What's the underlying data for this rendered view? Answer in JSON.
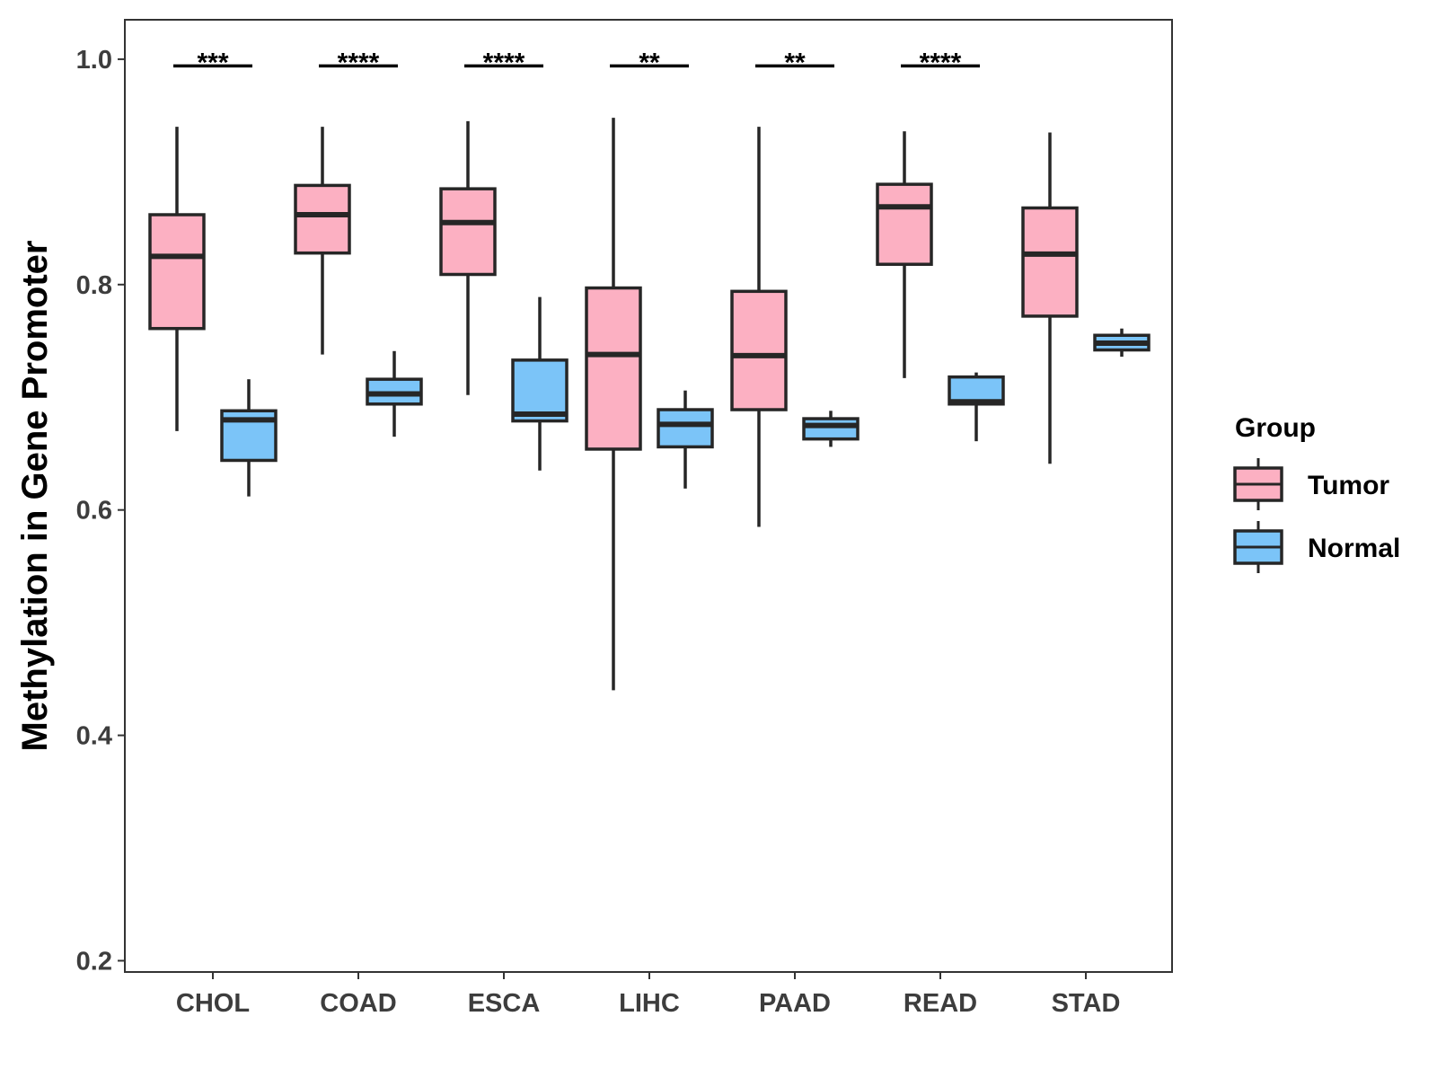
{
  "chart_data": {
    "type": "boxplot",
    "title": "",
    "xlabel": "",
    "ylabel": "Methylation in Gene Promoter",
    "ylim": [
      0.19,
      1.035
    ],
    "yticks": [
      {
        "value": 0.2,
        "label": "0.2"
      },
      {
        "value": 0.4,
        "label": "0.4"
      },
      {
        "value": 0.6,
        "label": "0.6"
      },
      {
        "value": 0.8,
        "label": "0.8"
      },
      {
        "value": 1.0,
        "label": "1.0"
      }
    ],
    "categories": [
      "CHOL",
      "COAD",
      "ESCA",
      "LIHC",
      "PAAD",
      "READ",
      "STAD"
    ],
    "legend": {
      "title": "Group",
      "placement": "right",
      "entries": [
        {
          "name": "Tumor",
          "color": "#FCB0C2"
        },
        {
          "name": "Normal",
          "color": "#7BC4F8"
        }
      ]
    },
    "series": [
      {
        "name": "Tumor",
        "color": "#FCB0C2",
        "boxes": [
          {
            "min": 0.67,
            "q1": 0.761,
            "median": 0.825,
            "q3": 0.862,
            "max": 0.94
          },
          {
            "min": 0.738,
            "q1": 0.828,
            "median": 0.862,
            "q3": 0.888,
            "max": 0.94
          },
          {
            "min": 0.702,
            "q1": 0.809,
            "median": 0.855,
            "q3": 0.885,
            "max": 0.945
          },
          {
            "min": 0.44,
            "q1": 0.654,
            "median": 0.738,
            "q3": 0.797,
            "max": 0.948
          },
          {
            "min": 0.585,
            "q1": 0.689,
            "median": 0.737,
            "q3": 0.794,
            "max": 0.94
          },
          {
            "min": 0.717,
            "q1": 0.818,
            "median": 0.869,
            "q3": 0.889,
            "max": 0.936
          },
          {
            "min": 0.641,
            "q1": 0.772,
            "median": 0.827,
            "q3": 0.868,
            "max": 0.935
          }
        ]
      },
      {
        "name": "Normal",
        "color": "#7BC4F8",
        "boxes": [
          {
            "min": 0.612,
            "q1": 0.644,
            "median": 0.68,
            "q3": 0.688,
            "max": 0.716
          },
          {
            "min": 0.665,
            "q1": 0.694,
            "median": 0.703,
            "q3": 0.716,
            "max": 0.741
          },
          {
            "min": 0.635,
            "q1": 0.679,
            "median": 0.685,
            "q3": 0.733,
            "max": 0.789
          },
          {
            "min": 0.619,
            "q1": 0.656,
            "median": 0.676,
            "q3": 0.689,
            "max": 0.706
          },
          {
            "min": 0.656,
            "q1": 0.663,
            "median": 0.675,
            "q3": 0.681,
            "max": 0.688
          },
          {
            "min": 0.661,
            "q1": 0.694,
            "median": 0.696,
            "q3": 0.718,
            "max": 0.722
          },
          {
            "min": 0.736,
            "q1": 0.742,
            "median": 0.748,
            "q3": 0.755,
            "max": 0.761
          }
        ]
      }
    ],
    "significance": [
      {
        "category": "CHOL",
        "label": "***"
      },
      {
        "category": "COAD",
        "label": "****"
      },
      {
        "category": "ESCA",
        "label": "****"
      },
      {
        "category": "LIHC",
        "label": "**"
      },
      {
        "category": "PAAD",
        "label": "**"
      },
      {
        "category": "READ",
        "label": "****"
      }
    ],
    "significance_bar_value": 0.994
  }
}
